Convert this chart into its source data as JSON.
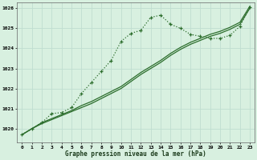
{
  "title": "Graphe pression niveau de la mer (hPa)",
  "bg_color": "#d8f0e0",
  "grid_color": "#c0ddd0",
  "line_color": "#2d6e2d",
  "x_labels": [
    "0",
    "1",
    "2",
    "3",
    "4",
    "5",
    "6",
    "7",
    "8",
    "9",
    "10",
    "11",
    "12",
    "13",
    "14",
    "15",
    "16",
    "17",
    "18",
    "19",
    "20",
    "21",
    "22",
    "23"
  ],
  "ylim": [
    1019.3,
    1026.3
  ],
  "yticks": [
    1020,
    1021,
    1022,
    1023,
    1024,
    1025,
    1026
  ],
  "series1": [
    1019.7,
    1020.0,
    1020.25,
    1020.45,
    1020.65,
    1020.85,
    1021.05,
    1021.25,
    1021.5,
    1021.75,
    1022.0,
    1022.35,
    1022.7,
    1023.0,
    1023.3,
    1023.65,
    1023.95,
    1024.2,
    1024.4,
    1024.6,
    1024.75,
    1024.95,
    1025.2,
    1026.0
  ],
  "series2": [
    1019.7,
    1020.0,
    1020.3,
    1020.5,
    1020.7,
    1020.9,
    1021.15,
    1021.35,
    1021.6,
    1021.85,
    1022.1,
    1022.45,
    1022.8,
    1023.1,
    1023.4,
    1023.75,
    1024.05,
    1024.3,
    1024.5,
    1024.7,
    1024.85,
    1025.05,
    1025.3,
    1026.1
  ],
  "series3": [
    1019.7,
    1020.0,
    1020.3,
    1020.75,
    1020.8,
    1021.05,
    1021.75,
    1022.3,
    1022.85,
    1023.4,
    1024.35,
    1024.75,
    1024.9,
    1025.55,
    1025.65,
    1025.2,
    1025.0,
    1024.7,
    1024.6,
    1024.5,
    1024.5,
    1024.65,
    1025.1,
    1026.05
  ]
}
